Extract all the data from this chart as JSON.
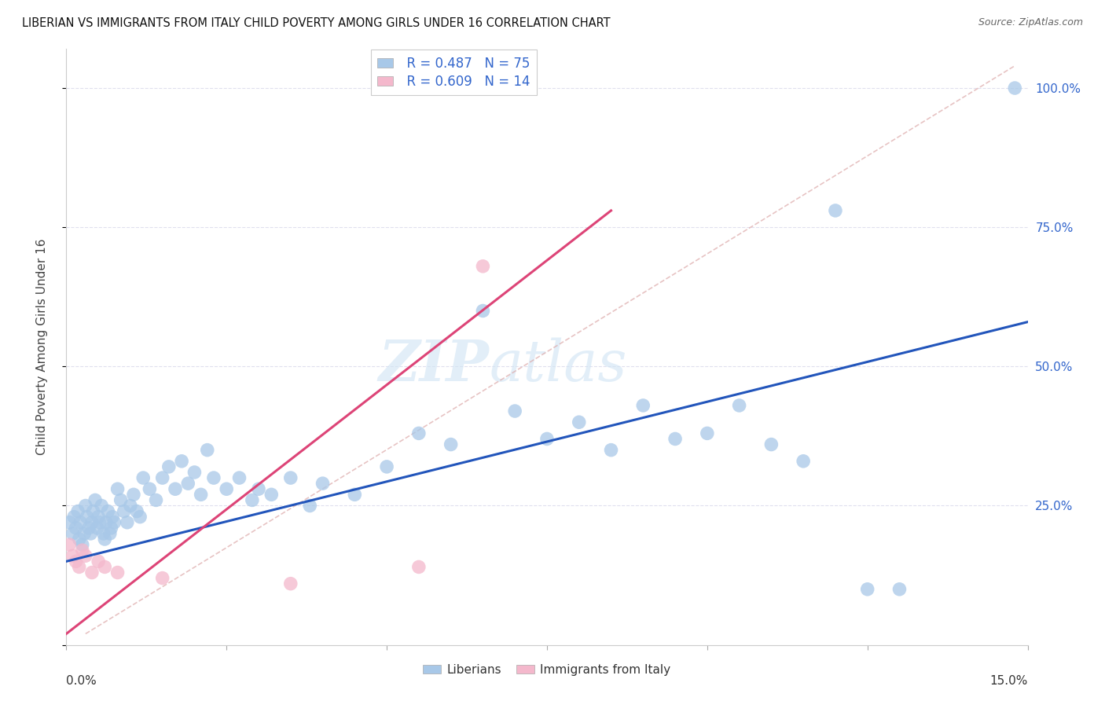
{
  "title": "LIBERIAN VS IMMIGRANTS FROM ITALY CHILD POVERTY AMONG GIRLS UNDER 16 CORRELATION CHART",
  "source": "Source: ZipAtlas.com",
  "ylabel": "Child Poverty Among Girls Under 16",
  "legend_r": [
    "R = 0.487",
    "R = 0.609"
  ],
  "legend_n": [
    "N = 75",
    "N = 14"
  ],
  "blue_color": "#a8c8e8",
  "pink_color": "#f4b8cc",
  "blue_line_color": "#2255bb",
  "pink_line_color": "#dd4477",
  "right_axis_color": "#3366cc",
  "ytick_labels": [
    "25.0%",
    "50.0%",
    "75.0%",
    "100.0%"
  ],
  "ytick_values": [
    25,
    50,
    75,
    100
  ],
  "xlim": [
    0,
    15
  ],
  "ylim": [
    0,
    107
  ],
  "blue_scatter_x": [
    0.05,
    0.1,
    0.12,
    0.15,
    0.18,
    0.2,
    0.22,
    0.25,
    0.28,
    0.3,
    0.32,
    0.35,
    0.38,
    0.4,
    0.42,
    0.45,
    0.48,
    0.5,
    0.52,
    0.55,
    0.58,
    0.6,
    0.62,
    0.65,
    0.68,
    0.7,
    0.72,
    0.75,
    0.8,
    0.85,
    0.9,
    0.95,
    1.0,
    1.05,
    1.1,
    1.15,
    1.2,
    1.3,
    1.4,
    1.5,
    1.6,
    1.7,
    1.8,
    1.9,
    2.0,
    2.1,
    2.2,
    2.3,
    2.5,
    2.7,
    2.9,
    3.0,
    3.2,
    3.5,
    3.8,
    4.0,
    4.5,
    5.0,
    5.5,
    6.0,
    6.5,
    7.0,
    7.5,
    8.0,
    8.5,
    9.0,
    9.5,
    10.0,
    10.5,
    11.0,
    11.5,
    12.0,
    12.5,
    13.0,
    14.8
  ],
  "blue_scatter_y": [
    22,
    20,
    23,
    21,
    24,
    19,
    22,
    18,
    20,
    25,
    23,
    21,
    20,
    22,
    24,
    26,
    21,
    23,
    22,
    25,
    20,
    19,
    22,
    24,
    20,
    21,
    23,
    22,
    28,
    26,
    24,
    22,
    25,
    27,
    24,
    23,
    30,
    28,
    26,
    30,
    32,
    28,
    33,
    29,
    31,
    27,
    35,
    30,
    28,
    30,
    26,
    28,
    27,
    30,
    25,
    29,
    27,
    32,
    38,
    36,
    60,
    42,
    37,
    40,
    35,
    43,
    37,
    38,
    43,
    36,
    33,
    78,
    10,
    10,
    100
  ],
  "pink_scatter_x": [
    0.05,
    0.1,
    0.15,
    0.2,
    0.25,
    0.3,
    0.4,
    0.5,
    0.6,
    0.8,
    1.5,
    3.5,
    5.5,
    6.5
  ],
  "pink_scatter_y": [
    18,
    16,
    15,
    14,
    17,
    16,
    13,
    15,
    14,
    13,
    12,
    11,
    14,
    68
  ],
  "blue_trend_x0": 0,
  "blue_trend_y0": 15,
  "blue_trend_x1": 15,
  "blue_trend_y1": 58,
  "pink_trend_x0": 0,
  "pink_trend_y0": 2,
  "pink_trend_x1": 8.5,
  "pink_trend_y1": 78,
  "diag_x0": 0.3,
  "diag_y0": 2,
  "diag_x1": 14.8,
  "diag_y1": 104,
  "watermark_zip": "ZIP",
  "watermark_atlas": "atlas",
  "background_color": "#ffffff",
  "grid_color": "#e0e0ee"
}
